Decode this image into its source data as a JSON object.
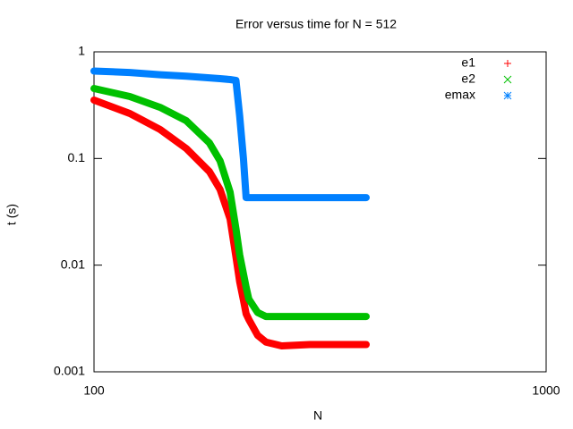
{
  "chart_data": {
    "type": "line",
    "title": "Error versus time for N = 512",
    "x_label": "N",
    "y_label": "t (s)",
    "x": [
      100,
      120,
      140,
      160,
      180,
      190,
      200,
      206,
      210,
      214,
      217,
      220,
      230,
      240,
      260,
      300,
      350,
      400
    ],
    "series": [
      {
        "name": "e1",
        "color": "#ff0000",
        "marker": "plus",
        "values": [
          0.353,
          0.264,
          0.187,
          0.124,
          0.0753,
          0.0512,
          0.0271,
          0.012,
          0.007,
          0.0047,
          0.0035,
          0.0031,
          0.0022,
          0.0019,
          0.00175,
          0.0018,
          0.0018,
          0.0018
        ]
      },
      {
        "name": "e2",
        "color": "#00c000",
        "marker": "cross",
        "values": [
          0.453,
          0.381,
          0.302,
          0.226,
          0.14,
          0.095,
          0.0483,
          0.022,
          0.0125,
          0.0083,
          0.0062,
          0.0048,
          0.0036,
          0.0033,
          0.0033,
          0.0033,
          0.0033,
          0.0033
        ]
      },
      {
        "name": "emax",
        "color": "#0080ff",
        "marker": "star",
        "values": [
          0.66,
          0.64,
          0.61,
          0.59,
          0.57,
          0.56,
          0.55,
          0.54,
          0.25,
          0.1,
          0.043,
          0.043,
          0.043,
          0.043,
          0.043,
          0.043,
          0.043,
          0.043
        ]
      }
    ],
    "xlim": [
      100,
      1000
    ],
    "xticks": [
      100,
      1000
    ],
    "ylim": [
      0.001,
      1
    ],
    "yticks": [
      0.001,
      0.01,
      0.1,
      1
    ],
    "log_x": true,
    "log_y": true,
    "legend": "top-right"
  }
}
